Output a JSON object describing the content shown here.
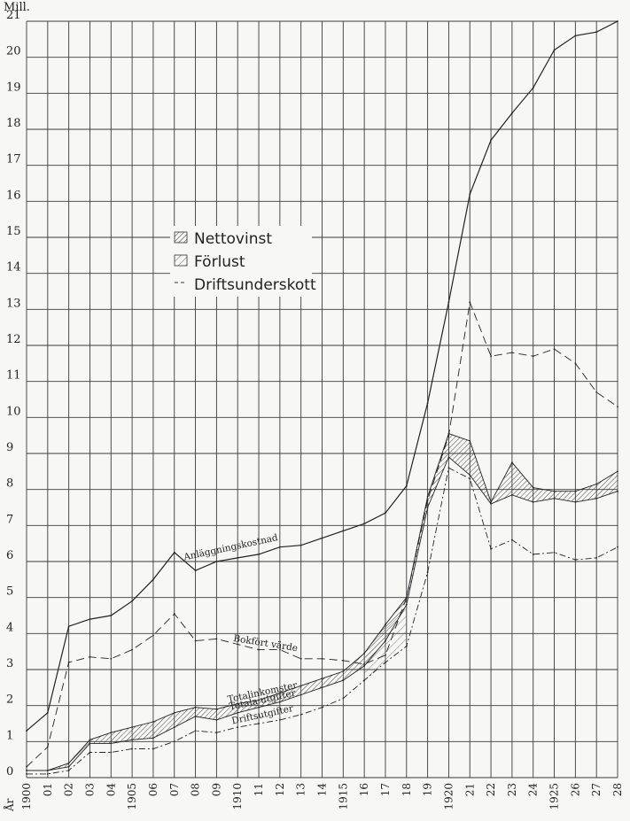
{
  "chart_data": {
    "type": "line",
    "y_unit_label": "Mill.",
    "x_axis_prefix": "År",
    "x": [
      1900,
      1901,
      1902,
      1903,
      1904,
      1905,
      1906,
      1907,
      1908,
      1909,
      1910,
      1911,
      1912,
      1913,
      1914,
      1915,
      1916,
      1917,
      1918,
      1919,
      1920,
      1921,
      1922,
      1923,
      1924,
      1925,
      1926,
      1927,
      1928
    ],
    "x_tick_labels": [
      "1900",
      "01",
      "02",
      "03",
      "04",
      "1905",
      "06",
      "07",
      "08",
      "09",
      "1910",
      "11",
      "12",
      "13",
      "14",
      "1915",
      "16",
      "17",
      "18",
      "19",
      "1920",
      "21",
      "22",
      "23",
      "24",
      "1925",
      "26",
      "27",
      "28"
    ],
    "ylim": [
      0,
      21
    ],
    "y_ticks": [
      0,
      1,
      2,
      3,
      4,
      5,
      6,
      7,
      8,
      9,
      10,
      11,
      12,
      13,
      14,
      15,
      16,
      17,
      18,
      19,
      20,
      21
    ],
    "grid": true,
    "legend_position": "upper-left",
    "legend": [
      {
        "label": "Nettovinst",
        "swatch": "hatch-dense"
      },
      {
        "label": "Förlust",
        "swatch": "hatch-light"
      },
      {
        "label": "Driftsunderskott",
        "swatch": "dash"
      }
    ],
    "series": [
      {
        "name": "Anläggningskostnad",
        "style": "solid",
        "values": [
          1.3,
          1.8,
          4.2,
          4.4,
          4.5,
          4.9,
          5.5,
          6.25,
          5.75,
          6.0,
          6.1,
          6.2,
          6.4,
          6.45,
          6.65,
          6.85,
          7.05,
          7.35,
          8.1,
          10.4,
          13.2,
          16.2,
          17.7,
          18.45,
          19.15,
          20.2,
          20.6,
          20.7,
          21.0
        ]
      },
      {
        "name": "Bokfört värde",
        "style": "dashed",
        "values": [
          0.3,
          0.85,
          3.2,
          3.35,
          3.3,
          3.55,
          3.95,
          4.55,
          3.8,
          3.85,
          3.7,
          3.55,
          3.55,
          3.3,
          3.3,
          3.25,
          3.15,
          3.4,
          5.0,
          7.7,
          9.5,
          13.2,
          11.7,
          11.8,
          11.7,
          11.9,
          11.5,
          10.7,
          10.3
        ]
      },
      {
        "name": "Totalinkomster",
        "style": "solid-thin",
        "values": [
          0.2,
          0.2,
          0.4,
          1.05,
          1.25,
          1.4,
          1.55,
          1.8,
          1.95,
          1.9,
          2.05,
          2.15,
          2.35,
          2.55,
          2.75,
          2.95,
          3.45,
          4.25,
          5.0,
          7.8,
          9.55,
          9.35,
          7.65,
          8.75,
          8.05,
          7.95,
          7.95,
          8.15,
          8.5
        ]
      },
      {
        "name": "Totala utgifter",
        "style": "solid-thin",
        "values": [
          0.2,
          0.2,
          0.3,
          0.95,
          0.95,
          1.05,
          1.1,
          1.4,
          1.7,
          1.6,
          1.8,
          1.95,
          2.1,
          2.3,
          2.5,
          2.7,
          3.1,
          3.8,
          4.8,
          7.5,
          8.9,
          8.4,
          7.6,
          7.85,
          7.65,
          7.75,
          7.65,
          7.75,
          7.95
        ]
      },
      {
        "name": "Driftsutgifter",
        "style": "dash-dot",
        "values": [
          0.1,
          0.1,
          0.2,
          0.7,
          0.7,
          0.8,
          0.8,
          1.0,
          1.3,
          1.25,
          1.4,
          1.5,
          1.6,
          1.75,
          1.95,
          2.2,
          2.7,
          3.2,
          3.65,
          5.7,
          8.6,
          8.3,
          6.35,
          6.6,
          6.2,
          6.25,
          6.05,
          6.1,
          6.4
        ]
      }
    ],
    "shaded_regions": [
      {
        "name": "Nettovinst",
        "between": [
          "Totalinkomster",
          "Totala utgifter"
        ],
        "pattern": "hatch-dense"
      },
      {
        "name": "Förlust",
        "between": [
          "Driftsutgifter",
          "Totalinkomster"
        ],
        "x_range": [
          1916,
          1918
        ],
        "pattern": "hatch-light"
      }
    ]
  }
}
